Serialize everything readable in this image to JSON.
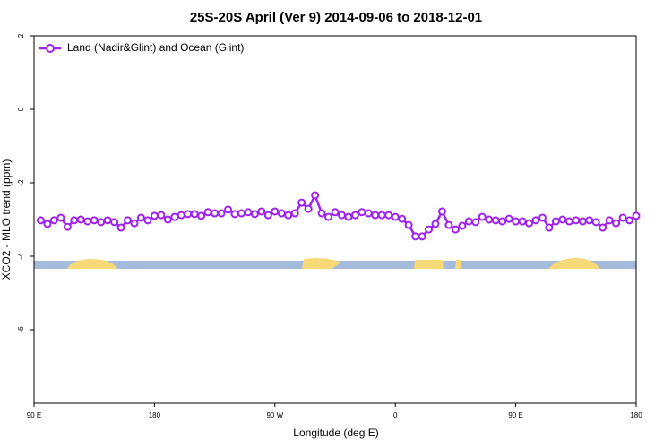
{
  "chart_data": {
    "type": "line",
    "title": "25S-20S April (Ver 9)   2014-09-06 to 2018-12-01",
    "xlabel": "Longitude (deg E)",
    "ylabel": "XCO2 - MLO trend (ppm)",
    "x": [
      -265,
      -260,
      -255,
      -250,
      -245,
      -240,
      -235,
      -230,
      -225,
      -220,
      -215,
      -210,
      -205,
      -200,
      -195,
      -190,
      -185,
      -180,
      -175,
      -170,
      -165,
      -160,
      -155,
      -150,
      -145,
      -140,
      -135,
      -130,
      -125,
      -120,
      -115,
      -110,
      -105,
      -100,
      -95,
      -90,
      -85,
      -80,
      -75,
      -70,
      -65,
      -60,
      -55,
      -50,
      -45,
      -40,
      -35,
      -30,
      -25,
      -20,
      -15,
      -10,
      -5,
      0,
      5,
      10,
      15,
      20,
      25,
      30,
      35,
      40,
      45,
      50,
      55,
      60,
      65,
      70,
      75,
      80,
      85,
      90,
      95,
      100,
      105,
      110,
      115,
      120,
      125,
      130,
      135,
      140,
      145,
      150,
      155,
      160,
      165,
      170,
      175,
      180
    ],
    "series": [
      {
        "name": "Land (Nadir&Glint) and Ocean (Glint)",
        "color": "#a020f0",
        "values": [
          -3.02,
          -3.12,
          -3.02,
          -2.95,
          -3.2,
          -3.02,
          -3.0,
          -3.05,
          -3.02,
          -3.07,
          -3.02,
          -3.07,
          -3.22,
          -3.02,
          -3.1,
          -2.95,
          -3.02,
          -2.9,
          -2.88,
          -3.0,
          -2.93,
          -2.88,
          -2.85,
          -2.85,
          -2.9,
          -2.8,
          -2.83,
          -2.83,
          -2.73,
          -2.85,
          -2.83,
          -2.8,
          -2.85,
          -2.78,
          -2.88,
          -2.78,
          -2.83,
          -2.88,
          -2.83,
          -2.54,
          -2.71,
          -2.34,
          -2.83,
          -2.93,
          -2.8,
          -2.88,
          -2.93,
          -2.88,
          -2.8,
          -2.83,
          -2.88,
          -2.88,
          -2.88,
          -2.93,
          -2.98,
          -3.15,
          -3.46,
          -3.46,
          -3.27,
          -3.12,
          -2.78,
          -3.15,
          -3.27,
          -3.17,
          -3.05,
          -3.07,
          -2.93,
          -3.0,
          -3.02,
          -3.05,
          -2.98,
          -3.05,
          -3.05,
          -3.1,
          -3.02,
          -2.95,
          -3.22,
          -3.05,
          -3.0,
          -3.05,
          -3.02,
          -3.05,
          -3.02,
          -3.07,
          -3.22,
          -3.02,
          -3.1,
          -2.95,
          -3.02,
          -2.9
        ]
      }
    ],
    "xlim": [
      -270,
      180
    ],
    "xticks": [
      {
        "value": -270,
        "label": "90 E"
      },
      {
        "value": -180,
        "label": "180"
      },
      {
        "value": -90,
        "label": "90 W"
      },
      0,
      {
        "value": 90,
        "label": "90 E"
      },
      180
    ],
    "ylim": [
      -8,
      2
    ],
    "yticks": [
      2,
      0,
      -2,
      -4,
      -6
    ],
    "legend": "top-left"
  }
}
